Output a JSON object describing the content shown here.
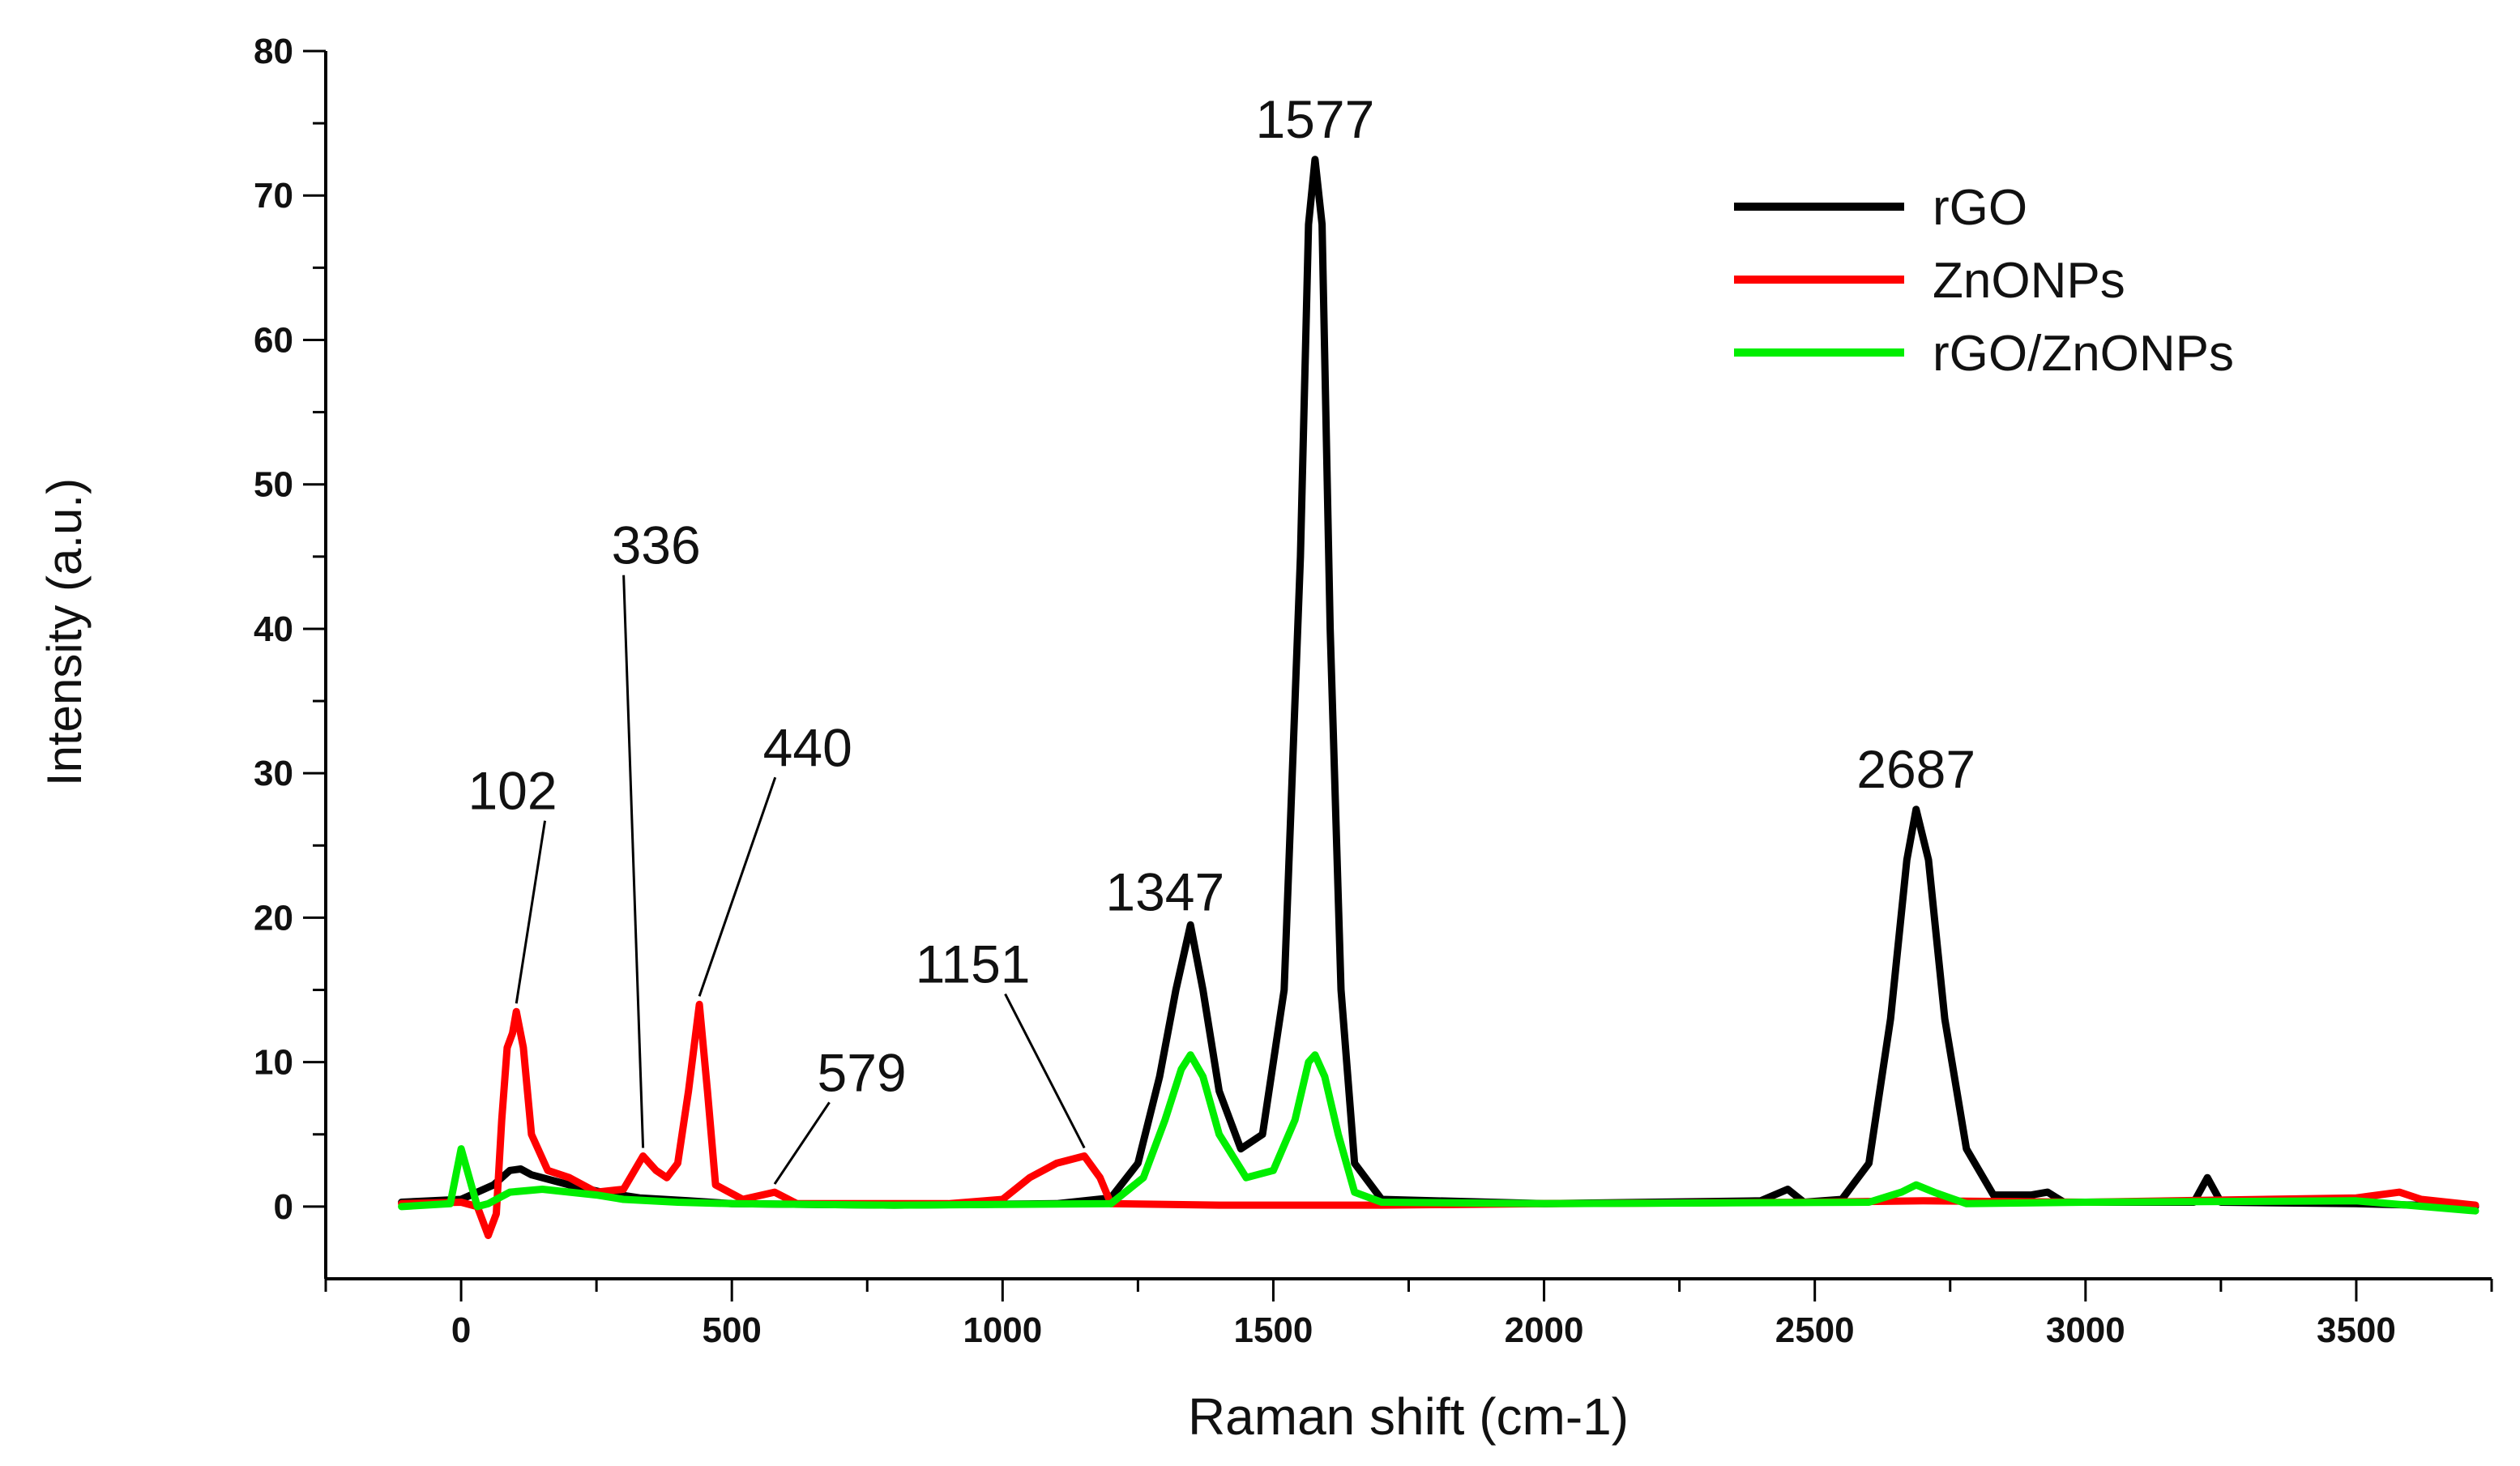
{
  "chart_data": {
    "type": "line",
    "xlabel": "Raman shift (cm-1)",
    "ylabel": "Intensity (a.u.)",
    "xlim": [
      -250,
      3750
    ],
    "ylim": [
      -5,
      80
    ],
    "xticks": [
      0,
      500,
      1000,
      1500,
      2000,
      2500,
      3000,
      3500
    ],
    "yticks": [
      0,
      10,
      20,
      30,
      40,
      50,
      60,
      70,
      80
    ],
    "legend_position": "top-right",
    "series": [
      {
        "name": "rGO",
        "color": "#000000",
        "points": [
          [
            -110,
            0.3
          ],
          [
            0,
            0.5
          ],
          [
            60,
            1.5
          ],
          [
            90,
            2.5
          ],
          [
            110,
            2.6
          ],
          [
            130,
            2.2
          ],
          [
            200,
            1.5
          ],
          [
            260,
            1.0
          ],
          [
            330,
            0.6
          ],
          [
            420,
            0.4
          ],
          [
            500,
            0.2
          ],
          [
            800,
            0.1
          ],
          [
            1100,
            0.2
          ],
          [
            1200,
            0.6
          ],
          [
            1250,
            3
          ],
          [
            1290,
            9
          ],
          [
            1320,
            15
          ],
          [
            1347,
            19.5
          ],
          [
            1370,
            15
          ],
          [
            1400,
            8
          ],
          [
            1440,
            4
          ],
          [
            1480,
            5
          ],
          [
            1520,
            15
          ],
          [
            1550,
            45
          ],
          [
            1565,
            68
          ],
          [
            1577,
            72.5
          ],
          [
            1590,
            68
          ],
          [
            1605,
            40
          ],
          [
            1625,
            15
          ],
          [
            1650,
            3
          ],
          [
            1700,
            0.5
          ],
          [
            2000,
            0.2
          ],
          [
            2400,
            0.4
          ],
          [
            2450,
            1.2
          ],
          [
            2480,
            0.3
          ],
          [
            2550,
            0.5
          ],
          [
            2600,
            3
          ],
          [
            2640,
            13
          ],
          [
            2670,
            24
          ],
          [
            2687,
            27.5
          ],
          [
            2710,
            24
          ],
          [
            2740,
            13
          ],
          [
            2780,
            4
          ],
          [
            2830,
            0.8
          ],
          [
            2900,
            0.8
          ],
          [
            2930,
            1.0
          ],
          [
            2960,
            0.3
          ],
          [
            3200,
            0.3
          ],
          [
            3225,
            2.0
          ],
          [
            3250,
            0.3
          ],
          [
            3500,
            0.2
          ],
          [
            3720,
            0.0
          ]
        ]
      },
      {
        "name": "ZnONPs",
        "color": "#ff0000",
        "points": [
          [
            -110,
            0.2
          ],
          [
            0,
            0.3
          ],
          [
            30,
            0
          ],
          [
            50,
            -2
          ],
          [
            65,
            -0.5
          ],
          [
            75,
            6
          ],
          [
            85,
            11
          ],
          [
            95,
            12
          ],
          [
            102,
            13.5
          ],
          [
            115,
            11
          ],
          [
            130,
            5
          ],
          [
            160,
            2.5
          ],
          [
            200,
            2
          ],
          [
            250,
            1
          ],
          [
            300,
            1.2
          ],
          [
            336,
            3.5
          ],
          [
            360,
            2.5
          ],
          [
            380,
            2
          ],
          [
            400,
            3
          ],
          [
            420,
            8
          ],
          [
            440,
            14
          ],
          [
            455,
            8
          ],
          [
            470,
            1.5
          ],
          [
            520,
            0.5
          ],
          [
            579,
            1.0
          ],
          [
            620,
            0.2
          ],
          [
            900,
            0.2
          ],
          [
            1000,
            0.5
          ],
          [
            1050,
            2
          ],
          [
            1100,
            3
          ],
          [
            1151,
            3.5
          ],
          [
            1180,
            2
          ],
          [
            1200,
            0.2
          ],
          [
            1400,
            0.1
          ],
          [
            1700,
            0.1
          ],
          [
            2000,
            0.2
          ],
          [
            2500,
            0.3
          ],
          [
            2700,
            0.4
          ],
          [
            3000,
            0.3
          ],
          [
            3500,
            0.6
          ],
          [
            3580,
            1.0
          ],
          [
            3620,
            0.5
          ],
          [
            3720,
            0.1
          ]
        ]
      },
      {
        "name": "rGO/ZnONPs",
        "color": "#00ee00",
        "points": [
          [
            -110,
            0
          ],
          [
            -20,
            0.2
          ],
          [
            0,
            4
          ],
          [
            15,
            2
          ],
          [
            30,
            0
          ],
          [
            50,
            0.2
          ],
          [
            90,
            1
          ],
          [
            150,
            1.2
          ],
          [
            250,
            0.8
          ],
          [
            300,
            0.5
          ],
          [
            400,
            0.3
          ],
          [
            500,
            0.2
          ],
          [
            800,
            0.1
          ],
          [
            1200,
            0.2
          ],
          [
            1260,
            2
          ],
          [
            1300,
            6
          ],
          [
            1330,
            9.5
          ],
          [
            1347,
            10.5
          ],
          [
            1370,
            9
          ],
          [
            1400,
            5
          ],
          [
            1450,
            2
          ],
          [
            1500,
            2.5
          ],
          [
            1540,
            6
          ],
          [
            1565,
            10
          ],
          [
            1577,
            10.5
          ],
          [
            1595,
            9
          ],
          [
            1620,
            5
          ],
          [
            1650,
            1
          ],
          [
            1700,
            0.3
          ],
          [
            2000,
            0.2
          ],
          [
            2600,
            0.3
          ],
          [
            2660,
            1
          ],
          [
            2687,
            1.5
          ],
          [
            2720,
            1.0
          ],
          [
            2780,
            0.2
          ],
          [
            3000,
            0.3
          ],
          [
            3500,
            0.4
          ],
          [
            3720,
            -0.3
          ]
        ]
      }
    ],
    "annotations": [
      {
        "text": "102",
        "x": 102,
        "y": 13.5,
        "label_x": 95,
        "label_y": 27.5
      },
      {
        "text": "336",
        "x": 336,
        "y": 3.5,
        "label_x": 360,
        "label_y": 44.5
      },
      {
        "text": "440",
        "x": 440,
        "y": 14,
        "label_x": 640,
        "label_y": 30.5
      },
      {
        "text": "579",
        "x": 579,
        "y": 1.0,
        "label_x": 740,
        "label_y": 8
      },
      {
        "text": "1151",
        "x": 1151,
        "y": 3.5,
        "label_x": 945,
        "label_y": 15.5
      },
      {
        "text": "1347",
        "x": 1347,
        "y": 19.5,
        "label_x": 1300,
        "label_y": 20.5
      },
      {
        "text": "1577",
        "x": 1577,
        "y": 72.5,
        "label_x": 1577,
        "label_y": 74
      },
      {
        "text": "2687",
        "x": 2687,
        "y": 27.5,
        "label_x": 2687,
        "label_y": 29
      }
    ]
  }
}
